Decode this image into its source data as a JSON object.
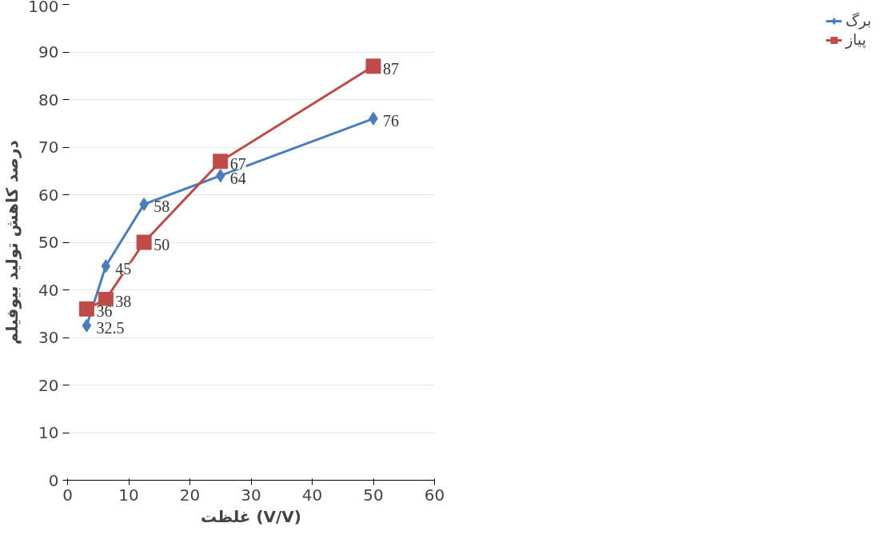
{
  "chart_data": {
    "type": "line",
    "xlabel": "غلظت (V/V)",
    "ylabel": "درصد کاهش تولید بیوفیلم",
    "x": [
      3.125,
      6.25,
      12.5,
      25,
      50
    ],
    "series": [
      {
        "name": "برگ",
        "color": "#4a7ebb",
        "marker": "diamond",
        "values": [
          32.5,
          45,
          58,
          64,
          76
        ]
      },
      {
        "name": "پیاز",
        "color": "#be4b48",
        "marker": "square",
        "values": [
          36,
          38,
          50,
          67,
          87
        ]
      }
    ],
    "xlim": [
      0,
      60
    ],
    "xticks": [
      0,
      10,
      20,
      30,
      40,
      50,
      60
    ],
    "ylim": [
      0,
      100
    ],
    "yticks": [
      0,
      10,
      20,
      30,
      40,
      50,
      60,
      70,
      80,
      90,
      100
    ],
    "grid": "y",
    "legend": "right",
    "data_labels": true,
    "line_style": "solid"
  }
}
